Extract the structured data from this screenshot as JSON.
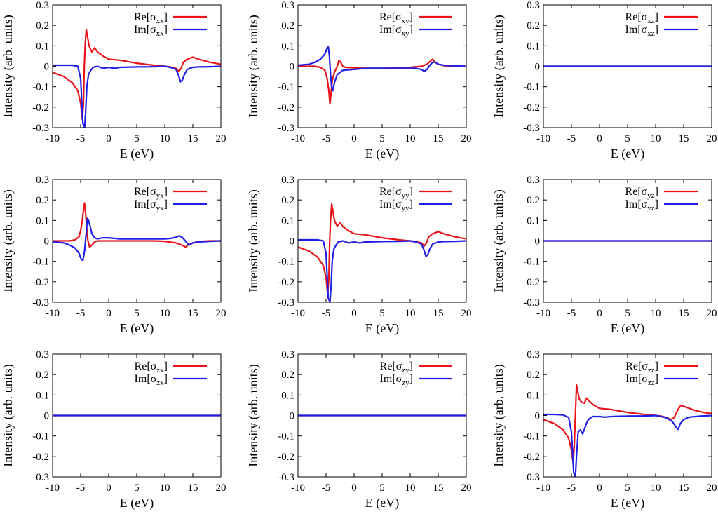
{
  "figure": {
    "rows": 3,
    "cols": 3
  },
  "chart_data": [
    {
      "id": "xx",
      "type": "line",
      "xlabel": "E (eV)",
      "ylabel": "Intensity (arb. units)",
      "xlim": [
        -10,
        20
      ],
      "ylim": [
        -0.3,
        0.3
      ],
      "xticks": [
        "-10",
        "-5",
        "0",
        "5",
        "10",
        "15",
        "20"
      ],
      "yticks": [
        "-0.3",
        "-0.2",
        "-0.1",
        "0",
        "0.1",
        "0.2",
        "0.3"
      ],
      "series": [
        {
          "label_main": "Re[σ",
          "label_sub": "xx",
          "label_end": "]",
          "color": "#e8141a",
          "x": [
            -10,
            -8,
            -6.5,
            -5.5,
            -5,
            -4.7,
            -4.5,
            -4.35,
            -4.2,
            -4.0,
            -3.8,
            -3.5,
            -3.0,
            -2.5,
            -2.0,
            -1.0,
            0,
            2,
            5,
            8,
            10,
            11,
            12,
            12.5,
            12.9,
            13.3,
            14,
            15,
            16,
            18,
            20
          ],
          "y": [
            -0.03,
            -0.05,
            -0.08,
            -0.12,
            -0.18,
            -0.26,
            -0.18,
            0.0,
            0.1,
            0.18,
            0.15,
            0.1,
            0.07,
            0.09,
            0.07,
            0.05,
            0.035,
            0.03,
            0.015,
            0.005,
            0.0,
            -0.003,
            -0.01,
            -0.025,
            -0.01,
            0.02,
            0.035,
            0.045,
            0.035,
            0.02,
            0.01
          ]
        },
        {
          "label_main": "Im[σ",
          "label_sub": "xx",
          "label_end": "]",
          "color": "#1f1fe6",
          "x": [
            -10,
            -8,
            -6.5,
            -5.5,
            -5.0,
            -4.6,
            -4.3,
            -4.1,
            -3.9,
            -3.6,
            -3.2,
            -2.8,
            -2.0,
            -1.0,
            0,
            1,
            2,
            5,
            8,
            10,
            11,
            12,
            12.4,
            12.8,
            13.1,
            13.5,
            14,
            15,
            16,
            18,
            20
          ],
          "y": [
            0.005,
            0.005,
            0.005,
            0.0,
            -0.06,
            -0.28,
            -0.3,
            -0.22,
            -0.1,
            -0.04,
            -0.02,
            -0.005,
            0.0,
            -0.01,
            -0.005,
            -0.01,
            -0.005,
            -0.003,
            -0.002,
            0.0,
            -0.005,
            -0.015,
            -0.04,
            -0.075,
            -0.07,
            -0.04,
            -0.015,
            -0.005,
            -0.003,
            -0.002,
            0.0
          ]
        }
      ]
    },
    {
      "id": "xy",
      "type": "line",
      "xlabel": "E (eV)",
      "ylabel": "Intensity (arb. units)",
      "xlim": [
        -10,
        20
      ],
      "ylim": [
        -0.3,
        0.3
      ],
      "xticks": [
        "-10",
        "-5",
        "0",
        "5",
        "10",
        "15",
        "20"
      ],
      "yticks": [
        "-0.3",
        "-0.2",
        "-0.1",
        "0",
        "0.1",
        "0.2",
        "0.3"
      ],
      "series": [
        {
          "label_main": "Re[σ",
          "label_sub": "xy",
          "label_end": "]",
          "color": "#e8141a",
          "x": [
            -10,
            -7,
            -6,
            -5.2,
            -4.8,
            -4.5,
            -4.3,
            -4.1,
            -3.9,
            -3.5,
            -3.0,
            -2.7,
            -2.4,
            -2.0,
            -1.5,
            0,
            2,
            5,
            8,
            10,
            12,
            13,
            13.6,
            14.0,
            14.4,
            15,
            16,
            18,
            20
          ],
          "y": [
            0.0,
            0.0,
            -0.005,
            -0.02,
            -0.06,
            -0.12,
            -0.185,
            -0.13,
            -0.07,
            -0.03,
            0.0,
            0.03,
            0.02,
            0.0,
            -0.005,
            -0.008,
            -0.01,
            -0.01,
            -0.008,
            -0.005,
            0.0,
            0.01,
            0.025,
            0.035,
            0.02,
            0.01,
            0.003,
            0.0,
            0.0
          ]
        },
        {
          "label_main": "Im[σ",
          "label_sub": "xy",
          "label_end": "]",
          "color": "#1f1fe6",
          "x": [
            -10,
            -8,
            -7,
            -6,
            -5.2,
            -4.8,
            -4.6,
            -4.4,
            -4.2,
            -4.0,
            -3.8,
            -3.5,
            -3.0,
            -2.0,
            0,
            2,
            5,
            8,
            10,
            11,
            12,
            12.5,
            13.0,
            13.5,
            14,
            14.5,
            15,
            16,
            18,
            20
          ],
          "y": [
            0.005,
            0.01,
            0.02,
            0.035,
            0.06,
            0.09,
            0.095,
            0.05,
            -0.04,
            -0.1,
            -0.12,
            -0.08,
            -0.04,
            -0.02,
            -0.015,
            -0.01,
            -0.01,
            -0.01,
            -0.01,
            -0.01,
            -0.015,
            -0.025,
            -0.015,
            0.005,
            0.02,
            0.02,
            0.01,
            0.005,
            0.002,
            0.0
          ]
        }
      ]
    },
    {
      "id": "xz",
      "type": "line",
      "xlabel": "E (eV)",
      "ylabel": "Intensity (arb. units)",
      "xlim": [
        -10,
        20
      ],
      "ylim": [
        -0.3,
        0.3
      ],
      "xticks": [
        "-10",
        "-5",
        "0",
        "5",
        "10",
        "15",
        "20"
      ],
      "yticks": [
        "-0.3",
        "-0.2",
        "-0.1",
        "0",
        "0.1",
        "0.2",
        "0.3"
      ],
      "series": [
        {
          "label_main": "Re[σ",
          "label_sub": "xz",
          "label_end": "]",
          "color": "#e8141a",
          "x": [
            -10,
            20
          ],
          "y": [
            0.0,
            0.0
          ]
        },
        {
          "label_main": "Im[σ",
          "label_sub": "xz",
          "label_end": "]",
          "color": "#1f1fe6",
          "x": [
            -10,
            20
          ],
          "y": [
            0.0,
            0.0
          ]
        }
      ]
    },
    {
      "id": "yx",
      "type": "line",
      "xlabel": "E (eV)",
      "ylabel": "Intensity (arb. units)",
      "xlim": [
        -10,
        20
      ],
      "ylim": [
        -0.3,
        0.3
      ],
      "xticks": [
        "-10",
        "-5",
        "0",
        "5",
        "10",
        "15",
        "20"
      ],
      "yticks": [
        "-0.3",
        "-0.2",
        "-0.1",
        "0",
        "0.1",
        "0.2",
        "0.3"
      ],
      "series": [
        {
          "label_main": "Re[σ",
          "label_sub": "yx",
          "label_end": "]",
          "color": "#e8141a",
          "x": [
            -10,
            -7,
            -6,
            -5.3,
            -5.0,
            -4.7,
            -4.5,
            -4.3,
            -4.1,
            -3.9,
            -3.7,
            -3.4,
            -3.0,
            -2.5,
            -2.0,
            0,
            2,
            5,
            8,
            10,
            12,
            13,
            13.7,
            14.2,
            15,
            16,
            18,
            20
          ],
          "y": [
            0.0,
            0.0,
            0.005,
            0.02,
            0.05,
            0.1,
            0.15,
            0.185,
            0.13,
            0.06,
            0.0,
            -0.03,
            -0.02,
            -0.005,
            0.0,
            0.0,
            0.0,
            0.0,
            0.0,
            -0.002,
            -0.01,
            -0.02,
            -0.03,
            -0.02,
            -0.01,
            -0.003,
            0.0,
            0.0
          ]
        },
        {
          "label_main": "Im[σ",
          "label_sub": "yx",
          "label_end": "]",
          "color": "#1f1fe6",
          "x": [
            -10,
            -8,
            -7,
            -6,
            -5.3,
            -4.9,
            -4.6,
            -4.3,
            -4.0,
            -3.8,
            -3.6,
            -3.3,
            -3.0,
            -2.5,
            -2.0,
            -1.0,
            0,
            2,
            5,
            8,
            10,
            11,
            12,
            12.6,
            13.2,
            13.8,
            14.3,
            15,
            16,
            18,
            20
          ],
          "y": [
            -0.005,
            -0.01,
            -0.02,
            -0.035,
            -0.06,
            -0.09,
            -0.095,
            -0.05,
            0.04,
            0.11,
            0.1,
            0.07,
            0.035,
            0.015,
            0.01,
            0.015,
            0.015,
            0.01,
            0.01,
            0.01,
            0.01,
            0.012,
            0.018,
            0.025,
            0.015,
            -0.005,
            -0.02,
            -0.01,
            -0.005,
            -0.002,
            0.0
          ]
        }
      ]
    },
    {
      "id": "yy",
      "type": "line",
      "xlabel": "E (eV)",
      "ylabel": "Intensity (arb. units)",
      "xlim": [
        -10,
        20
      ],
      "ylim": [
        -0.3,
        0.3
      ],
      "xticks": [
        "-10",
        "-5",
        "0",
        "5",
        "10",
        "15",
        "20"
      ],
      "yticks": [
        "-0.3",
        "-0.2",
        "-0.1",
        "0",
        "0.1",
        "0.2",
        "0.3"
      ],
      "series": [
        {
          "label_main": "Re[σ",
          "label_sub": "yy",
          "label_end": "]",
          "color": "#e8141a",
          "x": [
            -10,
            -8,
            -6.5,
            -5.5,
            -5.0,
            -4.7,
            -4.5,
            -4.35,
            -4.2,
            -4.0,
            -3.8,
            -3.5,
            -3.0,
            -2.5,
            -2.0,
            -1.0,
            0,
            2,
            5,
            8,
            10,
            11,
            12,
            12.5,
            12.9,
            13.3,
            14,
            15,
            16,
            18,
            20
          ],
          "y": [
            -0.03,
            -0.05,
            -0.08,
            -0.12,
            -0.18,
            -0.26,
            -0.18,
            0.0,
            0.1,
            0.18,
            0.15,
            0.1,
            0.07,
            0.09,
            0.07,
            0.05,
            0.035,
            0.03,
            0.015,
            0.005,
            0.0,
            -0.003,
            -0.01,
            -0.025,
            -0.01,
            0.02,
            0.035,
            0.045,
            0.035,
            0.02,
            0.01
          ]
        },
        {
          "label_main": "Im[σ",
          "label_sub": "yy",
          "label_end": "]",
          "color": "#1f1fe6",
          "x": [
            -10,
            -8,
            -6.5,
            -5.5,
            -5.0,
            -4.6,
            -4.3,
            -4.1,
            -3.9,
            -3.6,
            -3.2,
            -2.8,
            -2.0,
            -1.0,
            0,
            1,
            2,
            5,
            8,
            10,
            11,
            12,
            12.4,
            12.8,
            13.1,
            13.5,
            14,
            15,
            16,
            18,
            20
          ],
          "y": [
            0.005,
            0.005,
            0.005,
            0.0,
            -0.06,
            -0.28,
            -0.3,
            -0.22,
            -0.1,
            -0.04,
            -0.02,
            -0.005,
            0.0,
            -0.01,
            -0.005,
            -0.01,
            -0.005,
            -0.003,
            -0.002,
            0.0,
            -0.005,
            -0.015,
            -0.04,
            -0.075,
            -0.07,
            -0.04,
            -0.015,
            -0.005,
            -0.003,
            -0.002,
            0.0
          ]
        }
      ]
    },
    {
      "id": "yz",
      "type": "line",
      "xlabel": "E (eV)",
      "ylabel": "Intensity (arb. units)",
      "xlim": [
        -10,
        20
      ],
      "ylim": [
        -0.3,
        0.3
      ],
      "xticks": [
        "-10",
        "-5",
        "0",
        "5",
        "10",
        "15",
        "20"
      ],
      "yticks": [
        "-0.3",
        "-0.2",
        "-0.1",
        "0",
        "0.1",
        "0.2",
        "0.3"
      ],
      "series": [
        {
          "label_main": "Re[σ",
          "label_sub": "yz",
          "label_end": "]",
          "color": "#e8141a",
          "x": [
            -10,
            20
          ],
          "y": [
            0.0,
            0.0
          ]
        },
        {
          "label_main": "Im[σ",
          "label_sub": "yz",
          "label_end": "]",
          "color": "#1f1fe6",
          "x": [
            -10,
            20
          ],
          "y": [
            0.0,
            0.0
          ]
        }
      ]
    },
    {
      "id": "zx",
      "type": "line",
      "xlabel": "E (eV)",
      "ylabel": "Intensity (arb. units)",
      "xlim": [
        -10,
        20
      ],
      "ylim": [
        -0.3,
        0.3
      ],
      "xticks": [
        "-10",
        "-5",
        "0",
        "5",
        "10",
        "15",
        "20"
      ],
      "yticks": [
        "-0.3",
        "-0.2",
        "-0.1",
        "0",
        "0.1",
        "0.2",
        "0.3"
      ],
      "series": [
        {
          "label_main": "Re[σ",
          "label_sub": "zx",
          "label_end": "]",
          "color": "#e8141a",
          "x": [
            -10,
            20
          ],
          "y": [
            0.0,
            0.0
          ]
        },
        {
          "label_main": "Im[σ",
          "label_sub": "zx",
          "label_end": "]",
          "color": "#1f1fe6",
          "x": [
            -10,
            20
          ],
          "y": [
            0.0,
            0.0
          ]
        }
      ]
    },
    {
      "id": "zy",
      "type": "line",
      "xlabel": "E (eV)",
      "ylabel": "Intensity (arb. units)",
      "xlim": [
        -10,
        20
      ],
      "ylim": [
        -0.3,
        0.3
      ],
      "xticks": [
        "-10",
        "-5",
        "0",
        "5",
        "10",
        "15",
        "20"
      ],
      "yticks": [
        "-0.3",
        "-0.2",
        "-0.1",
        "0",
        "0.1",
        "0.2",
        "0.3"
      ],
      "series": [
        {
          "label_main": "Re[σ",
          "label_sub": "zy",
          "label_end": "]",
          "color": "#e8141a",
          "x": [
            -10,
            20
          ],
          "y": [
            0.0,
            0.0
          ]
        },
        {
          "label_main": "Im[σ",
          "label_sub": "zy",
          "label_end": "]",
          "color": "#1f1fe6",
          "x": [
            -10,
            20
          ],
          "y": [
            0.0,
            0.0
          ]
        }
      ]
    },
    {
      "id": "zz",
      "type": "line",
      "xlabel": "E (eV)",
      "ylabel": "Intensity (arb. units)",
      "xlim": [
        -10,
        20
      ],
      "ylim": [
        -0.3,
        0.3
      ],
      "xticks": [
        "-10",
        "-5",
        "0",
        "5",
        "10",
        "15",
        "20"
      ],
      "yticks": [
        "-0.3",
        "-0.2",
        "-0.1",
        "0",
        "0.1",
        "0.2",
        "0.3"
      ],
      "series": [
        {
          "label_main": "Re[σ",
          "label_sub": "zz",
          "label_end": "]",
          "color": "#e8141a",
          "x": [
            -10,
            -8,
            -6.5,
            -5.5,
            -5.0,
            -4.7,
            -4.5,
            -4.3,
            -4.1,
            -3.9,
            -3.6,
            -3.2,
            -2.7,
            -2.3,
            -1.8,
            -1.0,
            0,
            2,
            5,
            8,
            10,
            11,
            12,
            12.7,
            13.3,
            14,
            14.5,
            15.5,
            17,
            18.5,
            20
          ],
          "y": [
            -0.02,
            -0.04,
            -0.07,
            -0.11,
            -0.17,
            -0.23,
            -0.15,
            0.0,
            0.15,
            0.12,
            0.08,
            0.065,
            0.06,
            0.085,
            0.07,
            0.05,
            0.035,
            0.03,
            0.015,
            0.005,
            0.0,
            -0.003,
            -0.01,
            -0.02,
            -0.01,
            0.03,
            0.05,
            0.04,
            0.025,
            0.015,
            0.01
          ]
        },
        {
          "label_main": "Im[σ",
          "label_sub": "zz",
          "label_end": "]",
          "color": "#1f1fe6",
          "x": [
            -10,
            -8,
            -6.5,
            -5.5,
            -5.0,
            -4.6,
            -4.3,
            -4.1,
            -3.8,
            -3.4,
            -3.0,
            -2.6,
            -2.2,
            -1.8,
            -1.2,
            0,
            1,
            2,
            5,
            8,
            10,
            11,
            12,
            13,
            13.6,
            14,
            14.4,
            15,
            16,
            18,
            20
          ],
          "y": [
            0.005,
            0.005,
            0.003,
            -0.01,
            -0.08,
            -0.28,
            -0.3,
            -0.2,
            -0.08,
            -0.07,
            -0.09,
            -0.06,
            -0.03,
            -0.015,
            -0.005,
            -0.005,
            -0.008,
            -0.005,
            -0.003,
            -0.002,
            0.0,
            -0.005,
            -0.012,
            -0.03,
            -0.055,
            -0.068,
            -0.04,
            -0.02,
            -0.008,
            -0.003,
            0.0
          ]
        }
      ]
    }
  ]
}
